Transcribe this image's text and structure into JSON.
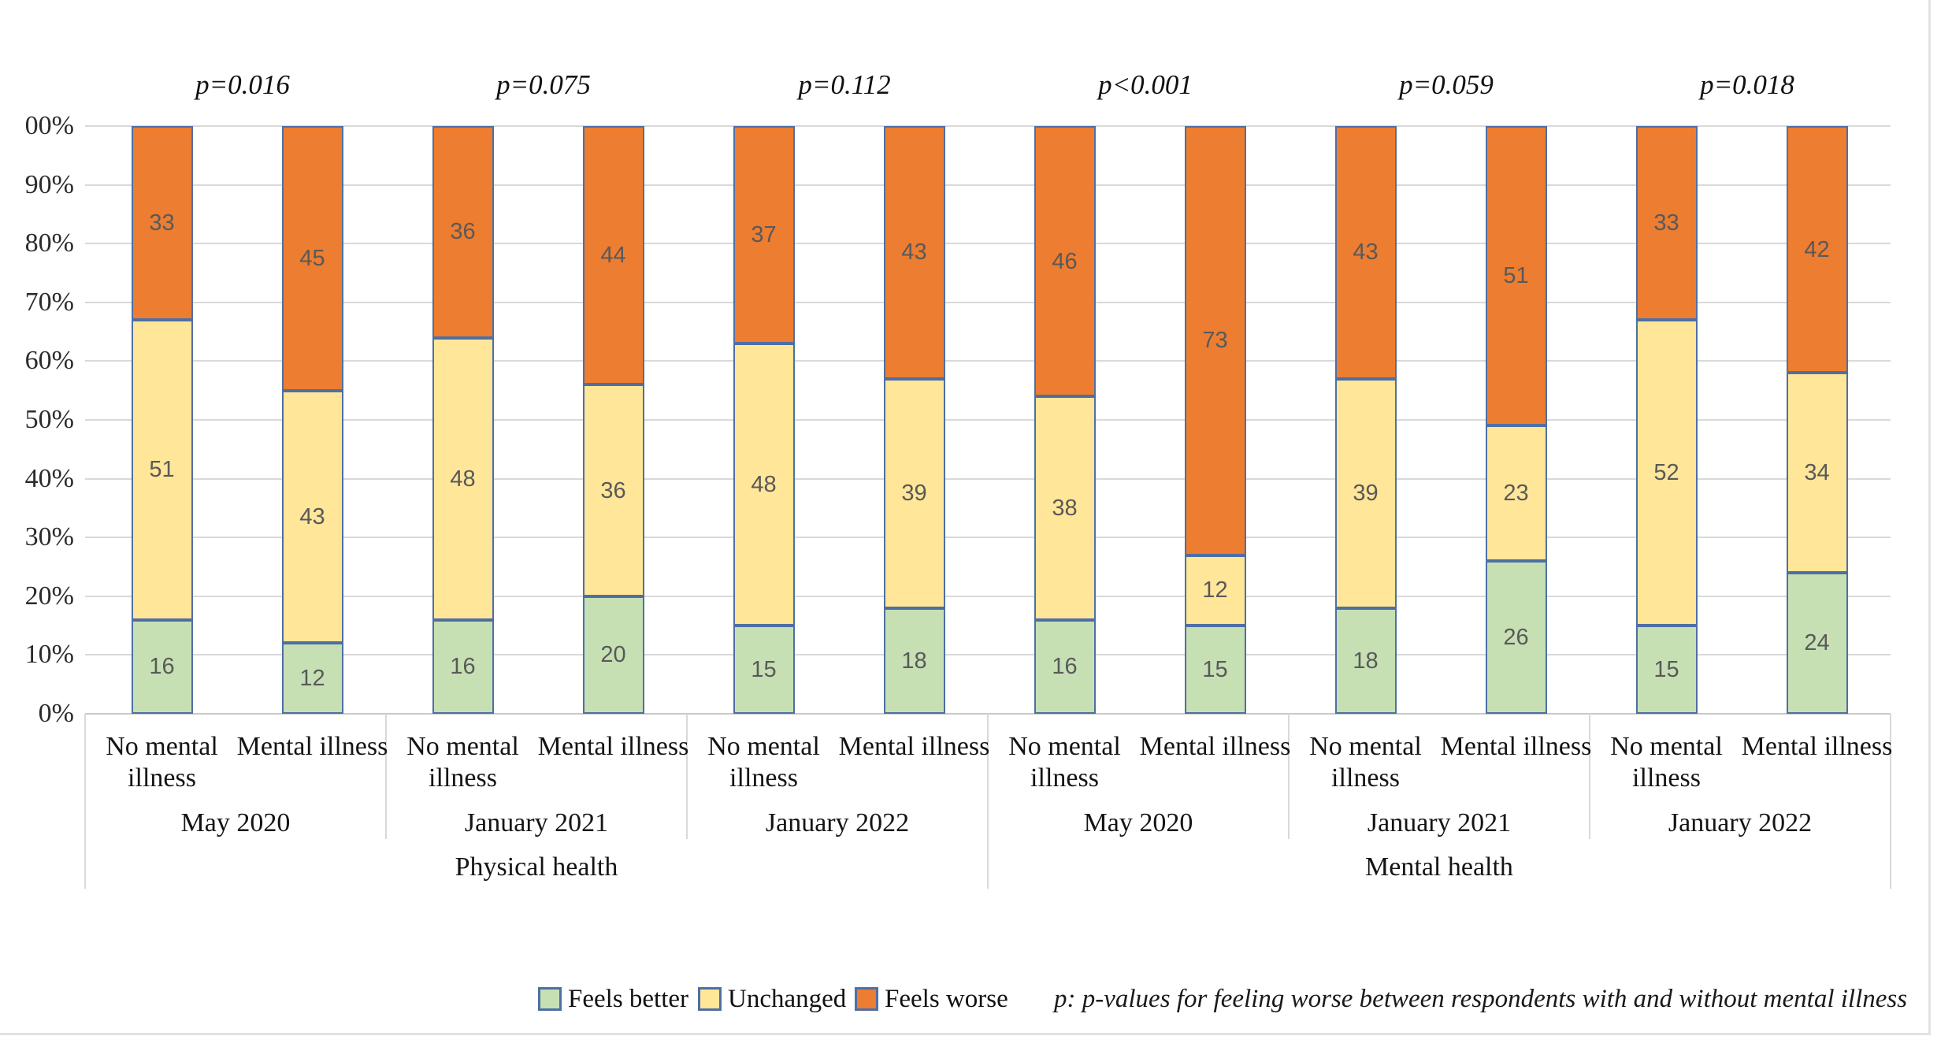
{
  "figure": {
    "note": "p: p-values for feeling worse between respondents with and without mental illness"
  },
  "legend": {
    "items": [
      {
        "label": "Feels better",
        "color": "#c6e0b4"
      },
      {
        "label": "Unchanged",
        "color": "#ffe699"
      },
      {
        "label": "Feels worse",
        "color": "#ed7d31"
      }
    ]
  },
  "chart_data": {
    "type": "bar",
    "stacked": true,
    "percent_stacked": true,
    "title": "",
    "ylabel": "",
    "xlabel": "",
    "ylim": [
      0,
      100
    ],
    "grid": true,
    "legend_position": "bottom",
    "y_axis_tick_labels": [
      "00%",
      "90%",
      "80%",
      "70%",
      "60%",
      "50%",
      "40%",
      "30%",
      "20%",
      "10%",
      "0%"
    ],
    "series_names": [
      "Feels better",
      "Unchanged",
      "Feels worse"
    ],
    "colors": {
      "feels_better": "#c6e0b4",
      "unchanged": "#ffe699",
      "feels_worse": "#ed7d31",
      "bar_border": "#4e6fa3",
      "gridline": "#d9d9d9"
    },
    "sections": [
      {
        "label": "Physical health",
        "periods": [
          {
            "label": "May 2020",
            "p_value": "p=0.016",
            "bars": [
              {
                "label": "No mental illness",
                "feels_better": 16,
                "unchanged": 51,
                "feels_worse": 33
              },
              {
                "label": "Mental illness",
                "feels_better": 12,
                "unchanged": 43,
                "feels_worse": 45
              }
            ]
          },
          {
            "label": "January 2021",
            "p_value": "p=0.075",
            "bars": [
              {
                "label": "No mental illness",
                "feels_better": 16,
                "unchanged": 48,
                "feels_worse": 36
              },
              {
                "label": "Mental illness",
                "feels_better": 20,
                "unchanged": 36,
                "feels_worse": 44
              }
            ]
          },
          {
            "label": "January 2022",
            "p_value": "p=0.112",
            "bars": [
              {
                "label": "No mental illness",
                "feels_better": 15,
                "unchanged": 48,
                "feels_worse": 37
              },
              {
                "label": "Mental illness",
                "feels_better": 18,
                "unchanged": 39,
                "feels_worse": 43
              }
            ]
          }
        ]
      },
      {
        "label": "Mental health",
        "periods": [
          {
            "label": "May 2020",
            "p_value": "p<0.001",
            "bars": [
              {
                "label": "No mental illness",
                "feels_better": 16,
                "unchanged": 38,
                "feels_worse": 46
              },
              {
                "label": "Mental illness",
                "feels_better": 15,
                "unchanged": 12,
                "feels_worse": 73
              }
            ]
          },
          {
            "label": "January 2021",
            "p_value": "p=0.059",
            "bars": [
              {
                "label": "No mental illness",
                "feels_better": 18,
                "unchanged": 39,
                "feels_worse": 43
              },
              {
                "label": "Mental illness",
                "feels_better": 26,
                "unchanged": 23,
                "feels_worse": 51
              }
            ]
          },
          {
            "label": "January 2022",
            "p_value": "p=0.018",
            "bars": [
              {
                "label": "No mental illness",
                "feels_better": 15,
                "unchanged": 52,
                "feels_worse": 33
              },
              {
                "label": "Mental illness",
                "feels_better": 24,
                "unchanged": 34,
                "feels_worse": 42
              }
            ]
          }
        ]
      }
    ]
  }
}
